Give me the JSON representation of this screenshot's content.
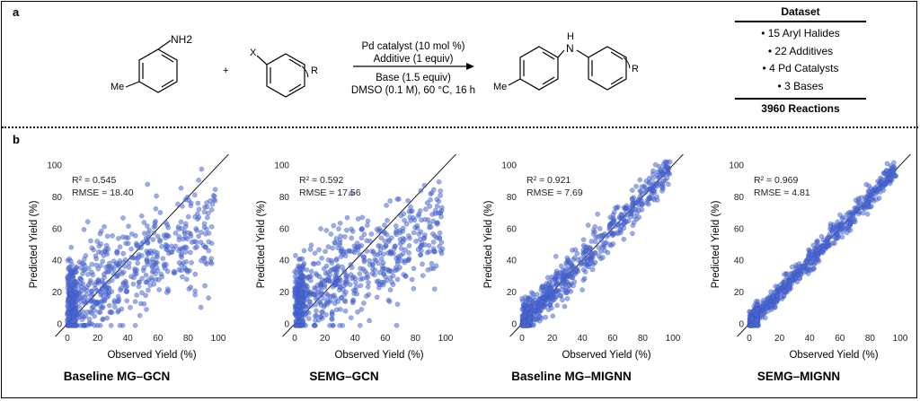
{
  "panels": {
    "a": "a",
    "b": "b"
  },
  "reaction": {
    "reactant1_group": "NH2",
    "reactant1_sub": "Me",
    "plus": "+",
    "reactant2_x": "X",
    "reactant2_r": "R",
    "conditions": [
      "Pd catalyst (10 mol %)",
      "Additive (1 equiv)",
      "Base (1.5 equiv)",
      "DMSO (0.1 M), 60 °C, 16 h"
    ],
    "product_nh": "H",
    "product_n": "N",
    "product_me": "Me",
    "product_r": "R"
  },
  "dataset": {
    "title": "Dataset",
    "items": [
      "• 15 Aryl Halides",
      "• 22 Additives",
      "• 4 Pd Catalysts",
      "• 3 Bases"
    ],
    "total": "3960 Reactions"
  },
  "chart_data": [
    {
      "type": "scatter",
      "title": "Baseline MG–GCN",
      "xlabel": "Observed Yield (%)",
      "ylabel": "Predicted Yield (%)",
      "xlim": [
        0,
        100
      ],
      "ylim": [
        0,
        100
      ],
      "ticks": [
        0,
        20,
        40,
        60,
        80,
        100
      ],
      "stats": [
        "R² = 0.545",
        "RMSE = 18.40"
      ],
      "r2": 0.545,
      "rmse": 18.4,
      "reference_line": "y = x",
      "point_color": "#4a67d6"
    },
    {
      "type": "scatter",
      "title": "SEMG–GCN",
      "xlabel": "Observed Yield (%)",
      "ylabel": "Predicted Yield (%)",
      "xlim": [
        0,
        100
      ],
      "ylim": [
        0,
        100
      ],
      "ticks": [
        0,
        20,
        40,
        60,
        80,
        100
      ],
      "stats": [
        "R² = 0.592",
        "RMSE = 17.56"
      ],
      "r2": 0.592,
      "rmse": 17.56,
      "reference_line": "y = x",
      "point_color": "#4a67d6"
    },
    {
      "type": "scatter",
      "title": "Baseline MG–MIGNN",
      "xlabel": "Observed Yield (%)",
      "ylabel": "Predicted Yield (%)",
      "xlim": [
        0,
        100
      ],
      "ylim": [
        0,
        100
      ],
      "ticks": [
        0,
        20,
        40,
        60,
        80,
        100
      ],
      "stats": [
        "R² = 0.921",
        "RMSE = 7.69"
      ],
      "r2": 0.921,
      "rmse": 7.69,
      "reference_line": "y = x",
      "point_color": "#4a67d6"
    },
    {
      "type": "scatter",
      "title": "SEMG–MIGNN",
      "xlabel": "Observed Yield (%)",
      "ylabel": "Predicted Yield (%)",
      "xlim": [
        0,
        100
      ],
      "ylim": [
        0,
        100
      ],
      "ticks": [
        0,
        20,
        40,
        60,
        80,
        100
      ],
      "stats": [
        "R² = 0.969",
        "RMSE = 4.81"
      ],
      "r2": 0.969,
      "rmse": 4.81,
      "reference_line": "y = x",
      "point_color": "#4a67d6"
    }
  ]
}
